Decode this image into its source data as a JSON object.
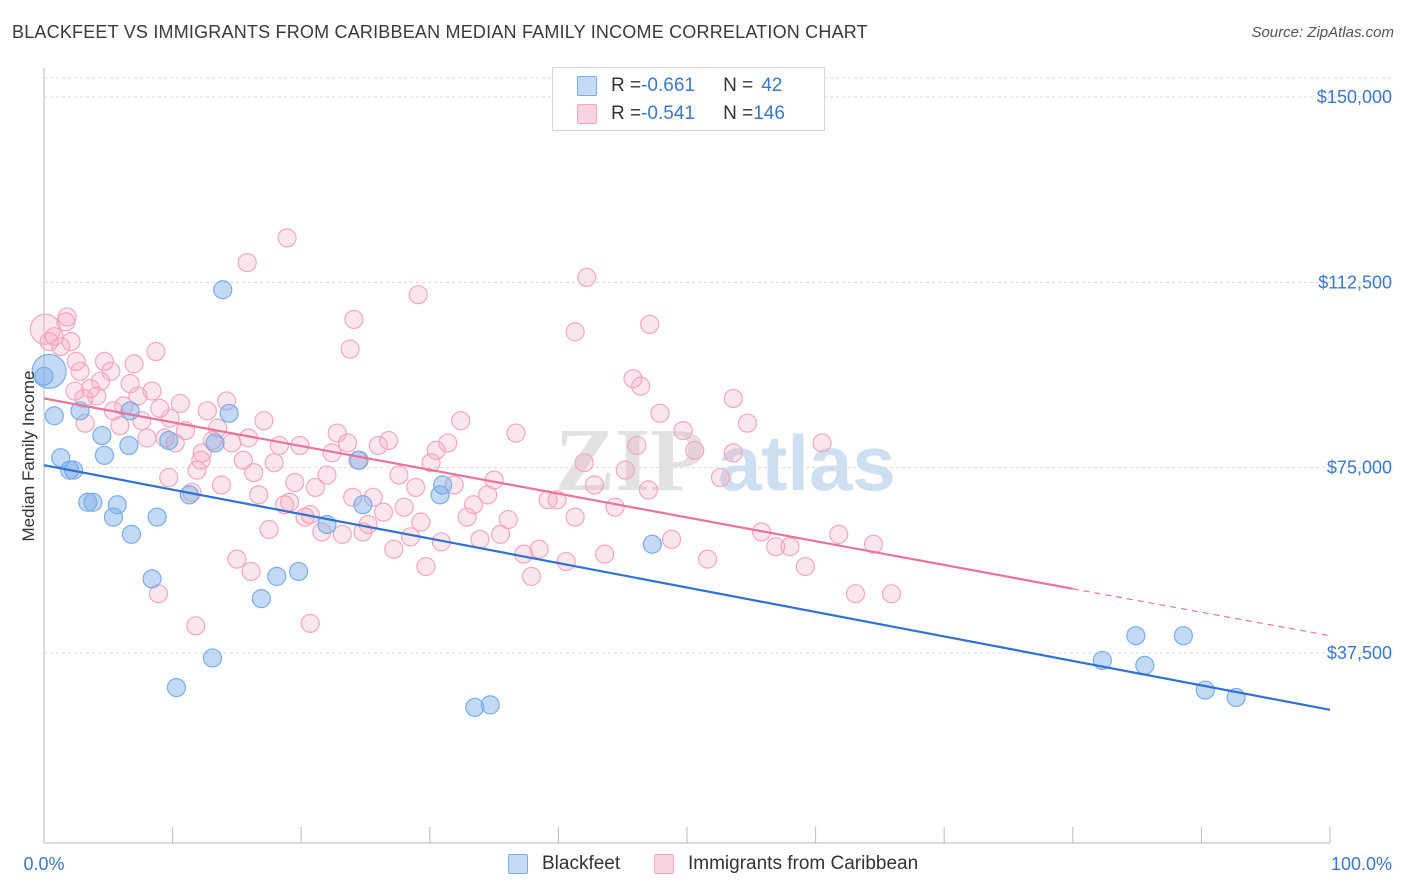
{
  "title": "BLACKFEET VS IMMIGRANTS FROM CARIBBEAN MEDIAN FAMILY INCOME CORRELATION CHART",
  "source": "Source: ZipAtlas.com",
  "watermark": {
    "zip": "ZIP",
    "atlas": "atlas"
  },
  "legend": {
    "rows": [
      {
        "r_label": "R = ",
        "r_value": "-0.661",
        "n_label": "N = ",
        "n_value": "42",
        "color": "#7aaee8"
      },
      {
        "r_label": "R = ",
        "r_value": "-0.541",
        "n_label": "N = ",
        "n_value": "146",
        "color": "#f4a7bf"
      }
    ]
  },
  "bottom_legend": [
    "Blackfeet",
    "Immigrants from Caribbean"
  ],
  "chart_data": {
    "type": "scatter",
    "title": "BLACKFEET VS IMMIGRANTS FROM CARIBBEAN MEDIAN FAMILY INCOME CORRELATION CHART",
    "xlabel": "",
    "ylabel": "Median Family Income",
    "xlim": [
      0,
      100
    ],
    "ylim": [
      0,
      160000
    ],
    "x_tick_labels": [
      "0.0%",
      "100.0%"
    ],
    "y_ticks": [
      37500,
      75000,
      112500,
      150000
    ],
    "y_tick_labels": [
      "$37,500",
      "$75,000",
      "$112,500",
      "$150,000"
    ],
    "grid": true,
    "legend_position": "top-center",
    "series": [
      {
        "name": "Blackfeet",
        "color": "#7aaee8",
        "line_color": "#2f72d1",
        "trend": {
          "x": [
            0,
            100
          ],
          "y": [
            75500,
            26000
          ]
        },
        "points": [
          [
            0.0,
            93500
          ],
          [
            0.8,
            85500
          ],
          [
            1.3,
            77000
          ],
          [
            2.0,
            74500
          ],
          [
            2.3,
            74500
          ],
          [
            2.8,
            86500
          ],
          [
            3.4,
            68000
          ],
          [
            3.8,
            68000
          ],
          [
            4.5,
            81500
          ],
          [
            4.7,
            77500
          ],
          [
            5.4,
            65000
          ],
          [
            5.7,
            67500
          ],
          [
            6.7,
            86500
          ],
          [
            6.8,
            61500
          ],
          [
            6.6,
            79500
          ],
          [
            8.4,
            52500
          ],
          [
            8.8,
            65000
          ],
          [
            9.7,
            80500
          ],
          [
            10.3,
            30500
          ],
          [
            11.3,
            69500
          ],
          [
            13.1,
            36500
          ],
          [
            13.3,
            80000
          ],
          [
            13.9,
            111000
          ],
          [
            14.4,
            86000
          ],
          [
            16.9,
            48500
          ],
          [
            18.1,
            53000
          ],
          [
            19.8,
            54000
          ],
          [
            22.0,
            63500
          ],
          [
            24.5,
            76500
          ],
          [
            24.8,
            67500
          ],
          [
            30.8,
            69500
          ],
          [
            31.0,
            71500
          ],
          [
            33.5,
            26500
          ],
          [
            34.7,
            27000
          ],
          [
            47.3,
            59500
          ],
          [
            82.3,
            36000
          ],
          [
            84.9,
            41000
          ],
          [
            85.6,
            35000
          ],
          [
            88.6,
            41000
          ],
          [
            90.3,
            30000
          ],
          [
            92.7,
            28500
          ],
          [
            0.4,
            94500
          ]
        ]
      },
      {
        "name": "Immigrants from Caribbean",
        "color": "#f4a7bf",
        "line_color": "#e8749d",
        "trend": {
          "x": [
            0,
            80
          ],
          "y": [
            89000,
            50500
          ]
        },
        "trend_dashed": {
          "x": [
            80,
            100
          ],
          "y": [
            50500,
            41000
          ]
        },
        "points": [
          [
            0.1,
            103000
          ],
          [
            0.4,
            100500
          ],
          [
            0.8,
            101500
          ],
          [
            1.3,
            99500
          ],
          [
            1.7,
            104500
          ],
          [
            2.1,
            100500
          ],
          [
            2.5,
            96500
          ],
          [
            2.8,
            94500
          ],
          [
            3.2,
            84000
          ],
          [
            3.6,
            91000
          ],
          [
            4.1,
            89500
          ],
          [
            4.4,
            92500
          ],
          [
            4.7,
            96500
          ],
          [
            5.2,
            94500
          ],
          [
            5.4,
            86500
          ],
          [
            5.9,
            83500
          ],
          [
            6.2,
            87500
          ],
          [
            6.7,
            92000
          ],
          [
            7.0,
            96000
          ],
          [
            7.3,
            89500
          ],
          [
            7.6,
            84500
          ],
          [
            8.0,
            81000
          ],
          [
            8.4,
            90500
          ],
          [
            8.7,
            98500
          ],
          [
            9.0,
            87000
          ],
          [
            9.4,
            81000
          ],
          [
            9.8,
            85000
          ],
          [
            10.2,
            80000
          ],
          [
            10.6,
            88000
          ],
          [
            11.0,
            82500
          ],
          [
            11.5,
            70000
          ],
          [
            11.9,
            74500
          ],
          [
            12.3,
            78000
          ],
          [
            12.7,
            86500
          ],
          [
            13.1,
            80500
          ],
          [
            13.5,
            83000
          ],
          [
            13.8,
            71500
          ],
          [
            14.2,
            88500
          ],
          [
            14.6,
            80000
          ],
          [
            15.0,
            56500
          ],
          [
            15.5,
            76500
          ],
          [
            15.9,
            81000
          ],
          [
            16.3,
            74000
          ],
          [
            16.7,
            69500
          ],
          [
            17.1,
            84500
          ],
          [
            17.5,
            62500
          ],
          [
            17.9,
            76000
          ],
          [
            18.3,
            79500
          ],
          [
            18.7,
            67500
          ],
          [
            19.1,
            68000
          ],
          [
            19.5,
            72000
          ],
          [
            19.9,
            79500
          ],
          [
            20.3,
            65000
          ],
          [
            20.7,
            65500
          ],
          [
            21.1,
            71000
          ],
          [
            21.6,
            62000
          ],
          [
            22.0,
            73500
          ],
          [
            22.4,
            78000
          ],
          [
            22.8,
            82000
          ],
          [
            23.2,
            61500
          ],
          [
            23.6,
            80000
          ],
          [
            24.0,
            69000
          ],
          [
            24.4,
            76500
          ],
          [
            24.8,
            62000
          ],
          [
            25.2,
            63500
          ],
          [
            25.6,
            69000
          ],
          [
            26.0,
            79500
          ],
          [
            26.4,
            66000
          ],
          [
            26.8,
            80500
          ],
          [
            27.2,
            58500
          ],
          [
            27.6,
            73500
          ],
          [
            28.0,
            67000
          ],
          [
            28.5,
            61000
          ],
          [
            28.9,
            71000
          ],
          [
            29.3,
            64000
          ],
          [
            29.7,
            55000
          ],
          [
            30.1,
            76000
          ],
          [
            30.5,
            78500
          ],
          [
            30.9,
            60000
          ],
          [
            31.4,
            80000
          ],
          [
            31.9,
            71500
          ],
          [
            32.4,
            84500
          ],
          [
            32.9,
            65000
          ],
          [
            33.4,
            67500
          ],
          [
            33.9,
            60500
          ],
          [
            34.5,
            69500
          ],
          [
            35.0,
            72500
          ],
          [
            35.5,
            61500
          ],
          [
            36.1,
            64500
          ],
          [
            36.7,
            82000
          ],
          [
            37.3,
            57500
          ],
          [
            37.9,
            53000
          ],
          [
            38.5,
            58500
          ],
          [
            39.2,
            68500
          ],
          [
            39.9,
            68500
          ],
          [
            40.6,
            56000
          ],
          [
            41.3,
            65000
          ],
          [
            42.0,
            76000
          ],
          [
            42.8,
            71500
          ],
          [
            43.6,
            57500
          ],
          [
            44.4,
            67000
          ],
          [
            45.2,
            74500
          ],
          [
            46.1,
            79500
          ],
          [
            47.0,
            70500
          ],
          [
            47.9,
            86000
          ],
          [
            48.8,
            60500
          ],
          [
            49.7,
            82500
          ],
          [
            50.6,
            78500
          ],
          [
            51.6,
            56500
          ],
          [
            52.6,
            73000
          ],
          [
            53.6,
            78000
          ],
          [
            54.7,
            84000
          ],
          [
            55.8,
            62000
          ],
          [
            56.9,
            59000
          ],
          [
            58.0,
            59000
          ],
          [
            59.2,
            55000
          ],
          [
            60.5,
            80000
          ],
          [
            61.8,
            61500
          ],
          [
            63.1,
            49500
          ],
          [
            64.5,
            59500
          ],
          [
            65.9,
            49500
          ],
          [
            20.7,
            43500
          ],
          [
            11.8,
            43000
          ],
          [
            8.9,
            49500
          ],
          [
            1.8,
            105500
          ],
          [
            2.4,
            90500
          ],
          [
            3.1,
            89000
          ],
          [
            9.7,
            73000
          ],
          [
            12.2,
            76500
          ],
          [
            16.1,
            54000
          ],
          [
            18.9,
            121500
          ],
          [
            15.8,
            116500
          ],
          [
            24.1,
            105000
          ],
          [
            23.8,
            99000
          ],
          [
            29.1,
            110000
          ],
          [
            42.2,
            113500
          ],
          [
            41.3,
            102500
          ],
          [
            47.1,
            104000
          ],
          [
            45.8,
            93000
          ],
          [
            46.4,
            91500
          ],
          [
            53.6,
            89000
          ]
        ]
      }
    ]
  }
}
